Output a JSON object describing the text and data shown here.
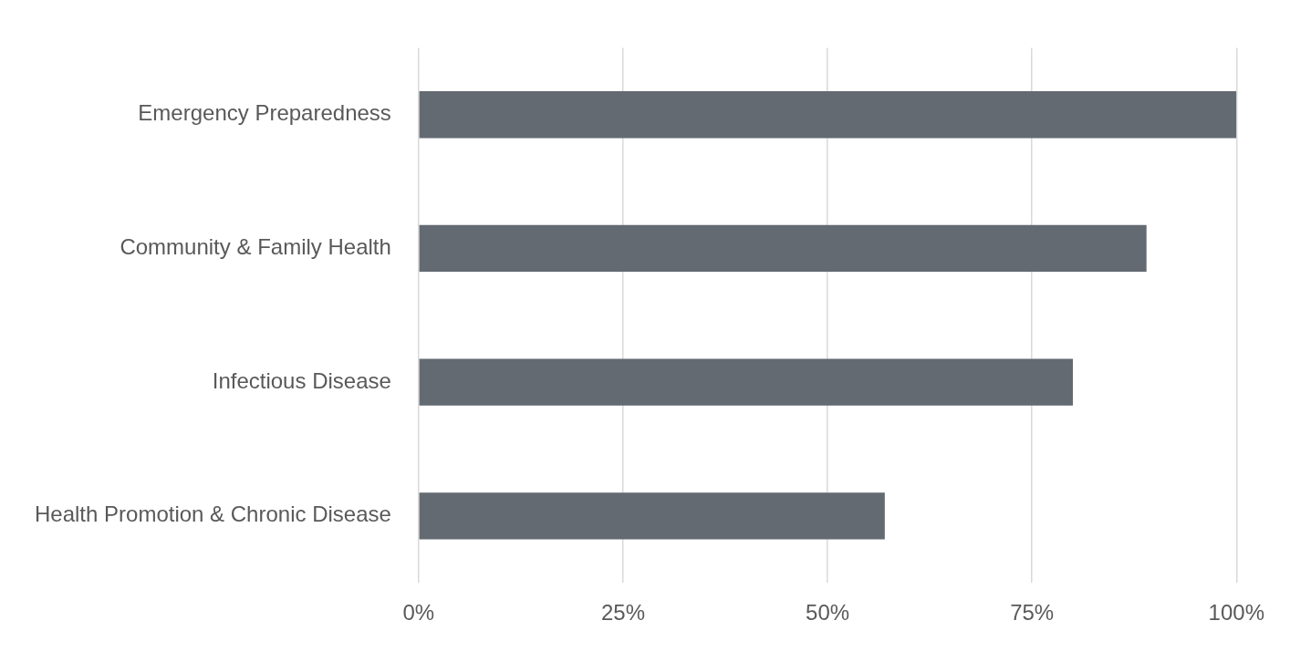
{
  "chart_data": {
    "type": "bar",
    "orientation": "horizontal",
    "categories": [
      "Emergency Preparedness",
      "Community & Family Health",
      "Infectious Disease",
      "Health Promotion & Chronic Disease"
    ],
    "values": [
      100,
      89,
      80,
      57
    ],
    "color": "#636a72",
    "xlim": [
      0,
      100
    ],
    "xticks": [
      {
        "value": 0,
        "label": "0%"
      },
      {
        "value": 25,
        "label": "25%"
      },
      {
        "value": 50,
        "label": "50%"
      },
      {
        "value": 75,
        "label": "75%"
      },
      {
        "value": 100,
        "label": "100%"
      }
    ],
    "grid": "x",
    "legend": false
  }
}
